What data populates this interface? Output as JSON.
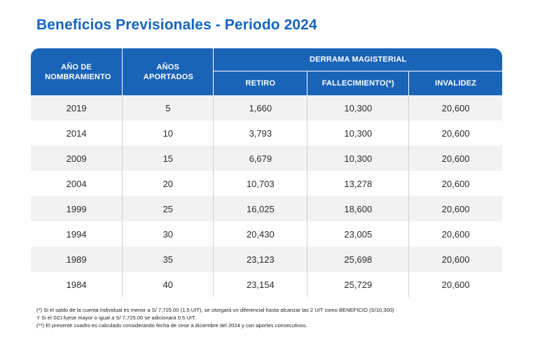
{
  "title": "Beneficios Previsionales - Periodo 2024",
  "table": {
    "headers": {
      "anio": "AÑO DE NOMBRAMIENTO",
      "anios_aportados": "AÑOS APORTADOS",
      "derrama": "DERRAMA MAGISTERIAL",
      "retiro": "RETIRO",
      "fallecimiento": "FALLECIMIENTO(*)",
      "invalidez": "INVALIDEZ"
    },
    "rows": [
      {
        "anio": "2019",
        "aportados": "5",
        "retiro": "1,660",
        "fallecimiento": "10,300",
        "invalidez": "20,600"
      },
      {
        "anio": "2014",
        "aportados": "10",
        "retiro": "3,793",
        "fallecimiento": "10,300",
        "invalidez": "20,600"
      },
      {
        "anio": "2009",
        "aportados": "15",
        "retiro": "6,679",
        "fallecimiento": "10,300",
        "invalidez": "20,600"
      },
      {
        "anio": "2004",
        "aportados": "20",
        "retiro": "10,703",
        "fallecimiento": "13,278",
        "invalidez": "20,600"
      },
      {
        "anio": "1999",
        "aportados": "25",
        "retiro": "16,025",
        "fallecimiento": "18,600",
        "invalidez": "20,600"
      },
      {
        "anio": "1994",
        "aportados": "30",
        "retiro": "20,430",
        "fallecimiento": "23,005",
        "invalidez": "20,600"
      },
      {
        "anio": "1989",
        "aportados": "35",
        "retiro": "23,123",
        "fallecimiento": "25,698",
        "invalidez": "20,600"
      },
      {
        "anio": "1984",
        "aportados": "40",
        "retiro": "23,154",
        "fallecimiento": "25,729",
        "invalidez": "20,600"
      }
    ]
  },
  "notes": [
    "(*) Si el saldo de la cuenta individual es menor a S/ 7,725.00 (1.5 UIT),  se otorgará un diferencial hasta alcanzar las 2 UIT como BENEFICIO (S/10,300)",
    "Y Si el SCI fuese mayor o igual a S/  7,725.00 se adicionará 0.5 UIT.",
    "(**) El presente cuadro es calculado considerando fecha de cese a diciembre del 2024 y con aportes consecutivos."
  ]
}
